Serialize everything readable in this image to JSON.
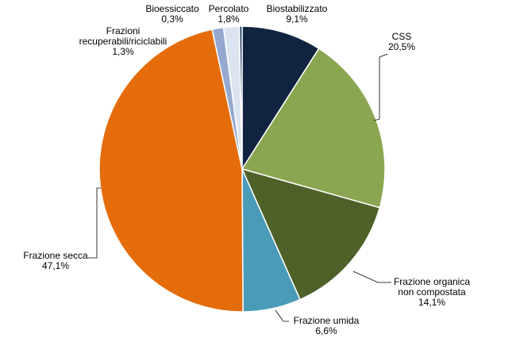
{
  "chart_data": {
    "type": "pie",
    "title": "",
    "slices": [
      {
        "label": "Biostabilizzato",
        "value": 9.1,
        "value_label": "9,1%",
        "color": "#11243f"
      },
      {
        "label": "CSS",
        "value": 20.5,
        "value_label": "20,5%",
        "color": "#8aa651"
      },
      {
        "label": "Frazione organica non compostata",
        "value": 14.1,
        "value_label": "14,1%",
        "color": "#4e6128"
      },
      {
        "label": "Frazione umida",
        "value": 6.6,
        "value_label": "6,6%",
        "color": "#4a9bb8"
      },
      {
        "label": "Frazione secca",
        "value": 47.1,
        "value_label": "47,1%",
        "color": "#e46c0a"
      },
      {
        "label": "Frazioni recuperabili/riciclabili",
        "value": 1.3,
        "value_label": "1,3%",
        "color": "#95a9d0"
      },
      {
        "label": "Percolato",
        "value": 1.8,
        "value_label": "1,8%",
        "color": "#dbe5f1"
      },
      {
        "label": "Bioessiccato",
        "value": 0.3,
        "value_label": "0,3%",
        "color": "#17375e"
      }
    ]
  }
}
